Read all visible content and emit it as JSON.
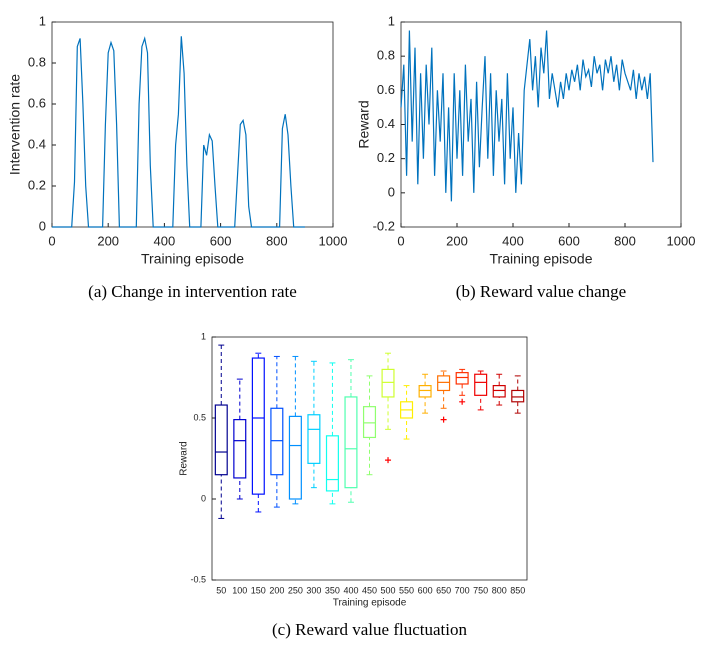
{
  "chart_data": [
    {
      "type": "line",
      "caption": "(a) Change in intervention rate",
      "xlabel": "Training episode",
      "ylabel": "Intervention rate",
      "xlim": [
        0,
        1000
      ],
      "xticks": [
        0,
        200,
        400,
        600,
        800,
        1000
      ],
      "ylim": [
        0,
        1
      ],
      "yticks": [
        0,
        0.2,
        0.4,
        0.6,
        0.8,
        1
      ],
      "series": [
        {
          "color": "#0072bd",
          "x": [
            0,
            10,
            20,
            30,
            40,
            50,
            60,
            70,
            80,
            90,
            100,
            110,
            120,
            130,
            140,
            150,
            160,
            170,
            180,
            190,
            200,
            210,
            220,
            230,
            240,
            250,
            260,
            270,
            280,
            290,
            300,
            310,
            320,
            330,
            340,
            350,
            360,
            370,
            380,
            390,
            400,
            410,
            420,
            430,
            440,
            450,
            460,
            470,
            480,
            490,
            500,
            510,
            520,
            530,
            540,
            550,
            560,
            570,
            580,
            590,
            600,
            610,
            620,
            630,
            640,
            650,
            660,
            670,
            680,
            690,
            700,
            710,
            720,
            730,
            740,
            750,
            760,
            770,
            780,
            790,
            800,
            810,
            820,
            830,
            840,
            850,
            860,
            870,
            880,
            890,
            900
          ],
          "values": [
            0,
            0,
            0,
            0,
            0,
            0,
            0,
            0,
            0.22,
            0.88,
            0.92,
            0.6,
            0.2,
            0,
            0,
            0,
            0,
            0,
            0,
            0.5,
            0.85,
            0.9,
            0.86,
            0.5,
            0,
            0,
            0,
            0,
            0,
            0,
            0,
            0.6,
            0.88,
            0.92,
            0.85,
            0.3,
            0,
            0,
            0,
            0,
            0,
            0,
            0,
            0,
            0.4,
            0.55,
            0.93,
            0.75,
            0.3,
            0,
            0,
            0,
            0,
            0,
            0.4,
            0.35,
            0.45,
            0.42,
            0.2,
            0,
            0,
            0,
            0,
            0,
            0,
            0,
            0.25,
            0.5,
            0.52,
            0.45,
            0.1,
            0,
            0,
            0,
            0,
            0,
            0,
            0,
            0,
            0,
            0,
            0,
            0.48,
            0.55,
            0.45,
            0.2,
            0,
            0,
            0,
            0,
            0
          ]
        }
      ]
    },
    {
      "type": "line",
      "caption": "(b) Reward value change",
      "xlabel": "Training episode",
      "ylabel": "Reward",
      "xlim": [
        0,
        1000
      ],
      "xticks": [
        0,
        200,
        400,
        600,
        800,
        1000
      ],
      "ylim": [
        -0.2,
        1
      ],
      "yticks": [
        -0.2,
        0,
        0.2,
        0.4,
        0.6,
        0.8,
        1
      ],
      "series": [
        {
          "color": "#0072bd",
          "x": [
            0,
            10,
            20,
            30,
            40,
            50,
            60,
            70,
            80,
            90,
            100,
            110,
            120,
            130,
            140,
            150,
            160,
            170,
            180,
            190,
            200,
            210,
            220,
            230,
            240,
            250,
            260,
            270,
            280,
            290,
            300,
            310,
            320,
            330,
            340,
            350,
            360,
            370,
            380,
            390,
            400,
            410,
            420,
            430,
            440,
            450,
            460,
            470,
            480,
            490,
            500,
            510,
            520,
            530,
            540,
            550,
            560,
            570,
            580,
            590,
            600,
            610,
            620,
            630,
            640,
            650,
            660,
            670,
            680,
            690,
            700,
            710,
            720,
            730,
            740,
            750,
            760,
            770,
            780,
            790,
            800,
            810,
            820,
            830,
            840,
            850,
            860,
            870,
            880,
            890,
            900
          ],
          "values": [
            0.5,
            0.75,
            0.1,
            0.95,
            0.3,
            0.85,
            0.05,
            0.7,
            0.2,
            0.75,
            0.4,
            0.85,
            0.1,
            0.6,
            0.3,
            0.7,
            0,
            0.5,
            -0.05,
            0.7,
            0.2,
            0.6,
            0.1,
            0.75,
            0.3,
            0.55,
            0,
            0.65,
            0.15,
            0.5,
            0.8,
            0.2,
            0.7,
            0.1,
            0.6,
            0.3,
            0.55,
            0.05,
            0.7,
            0.2,
            0.5,
            0,
            0.35,
            0.05,
            0.6,
            0.75,
            0.9,
            0.6,
            0.8,
            0.5,
            0.85,
            0.7,
            0.95,
            0.55,
            0.7,
            0.6,
            0.5,
            0.65,
            0.55,
            0.7,
            0.6,
            0.72,
            0.65,
            0.75,
            0.6,
            0.78,
            0.68,
            0.72,
            0.62,
            0.8,
            0.7,
            0.75,
            0.6,
            0.78,
            0.7,
            0.8,
            0.65,
            0.75,
            0.6,
            0.78,
            0.7,
            0.65,
            0.6,
            0.72,
            0.55,
            0.7,
            0.6,
            0.68,
            0.55,
            0.7,
            0.18
          ]
        }
      ]
    },
    {
      "type": "box",
      "caption": "(c) Reward value fluctuation",
      "xlabel": "Training episode",
      "ylabel": "Reward",
      "ylim": [
        -0.5,
        1
      ],
      "yticks": [
        -0.5,
        0,
        0.5,
        1
      ],
      "categories": [
        "50",
        "100",
        "150",
        "200",
        "250",
        "300",
        "350",
        "400",
        "450",
        "500",
        "550",
        "600",
        "650",
        "700",
        "750",
        "800",
        "850"
      ],
      "colors": [
        "#00008f",
        "#0000cf",
        "#0010ff",
        "#0050ff",
        "#0090ff",
        "#00cfff",
        "#10ffef",
        "#50ffaf",
        "#90ff6f",
        "#cfff30",
        "#ffef00",
        "#ffb000",
        "#ff7000",
        "#ff3000",
        "#ef0000",
        "#cf0000",
        "#b00000"
      ],
      "boxes": [
        {
          "whisker_low": -0.12,
          "q1": 0.15,
          "median": 0.29,
          "q3": 0.58,
          "whisker_high": 0.95,
          "outliers": []
        },
        {
          "whisker_low": 0,
          "q1": 0.13,
          "median": 0.36,
          "q3": 0.49,
          "whisker_high": 0.74,
          "outliers": []
        },
        {
          "whisker_low": -0.08,
          "q1": 0.03,
          "median": 0.5,
          "q3": 0.87,
          "whisker_high": 0.9,
          "outliers": []
        },
        {
          "whisker_low": -0.05,
          "q1": 0.15,
          "median": 0.36,
          "q3": 0.56,
          "whisker_high": 0.88,
          "outliers": []
        },
        {
          "whisker_low": -0.03,
          "q1": 0,
          "median": 0.33,
          "q3": 0.51,
          "whisker_high": 0.88,
          "outliers": []
        },
        {
          "whisker_low": 0.07,
          "q1": 0.22,
          "median": 0.43,
          "q3": 0.52,
          "whisker_high": 0.85,
          "outliers": []
        },
        {
          "whisker_low": -0.03,
          "q1": 0.05,
          "median": 0.12,
          "q3": 0.39,
          "whisker_high": 0.84,
          "outliers": []
        },
        {
          "whisker_low": -0.02,
          "q1": 0.07,
          "median": 0.31,
          "q3": 0.63,
          "whisker_high": 0.86,
          "outliers": []
        },
        {
          "whisker_low": 0.15,
          "q1": 0.38,
          "median": 0.47,
          "q3": 0.57,
          "whisker_high": 0.76,
          "outliers": []
        },
        {
          "whisker_low": 0.43,
          "q1": 0.63,
          "median": 0.72,
          "q3": 0.8,
          "whisker_high": 0.9,
          "outliers": [
            0.24
          ]
        },
        {
          "whisker_low": 0.37,
          "q1": 0.5,
          "median": 0.55,
          "q3": 0.6,
          "whisker_high": 0.7,
          "outliers": []
        },
        {
          "whisker_low": 0.53,
          "q1": 0.63,
          "median": 0.67,
          "q3": 0.7,
          "whisker_high": 0.77,
          "outliers": []
        },
        {
          "whisker_low": 0.56,
          "q1": 0.67,
          "median": 0.72,
          "q3": 0.76,
          "whisker_high": 0.79,
          "outliers": [
            0.49
          ]
        },
        {
          "whisker_low": 0.64,
          "q1": 0.71,
          "median": 0.75,
          "q3": 0.78,
          "whisker_high": 0.8,
          "outliers": [
            0.6
          ]
        },
        {
          "whisker_low": 0.55,
          "q1": 0.64,
          "median": 0.72,
          "q3": 0.77,
          "whisker_high": 0.79,
          "outliers": []
        },
        {
          "whisker_low": 0.58,
          "q1": 0.63,
          "median": 0.67,
          "q3": 0.7,
          "whisker_high": 0.77,
          "outliers": []
        },
        {
          "whisker_low": 0.53,
          "q1": 0.6,
          "median": 0.63,
          "q3": 0.67,
          "whisker_high": 0.76,
          "outliers": []
        }
      ]
    }
  ]
}
